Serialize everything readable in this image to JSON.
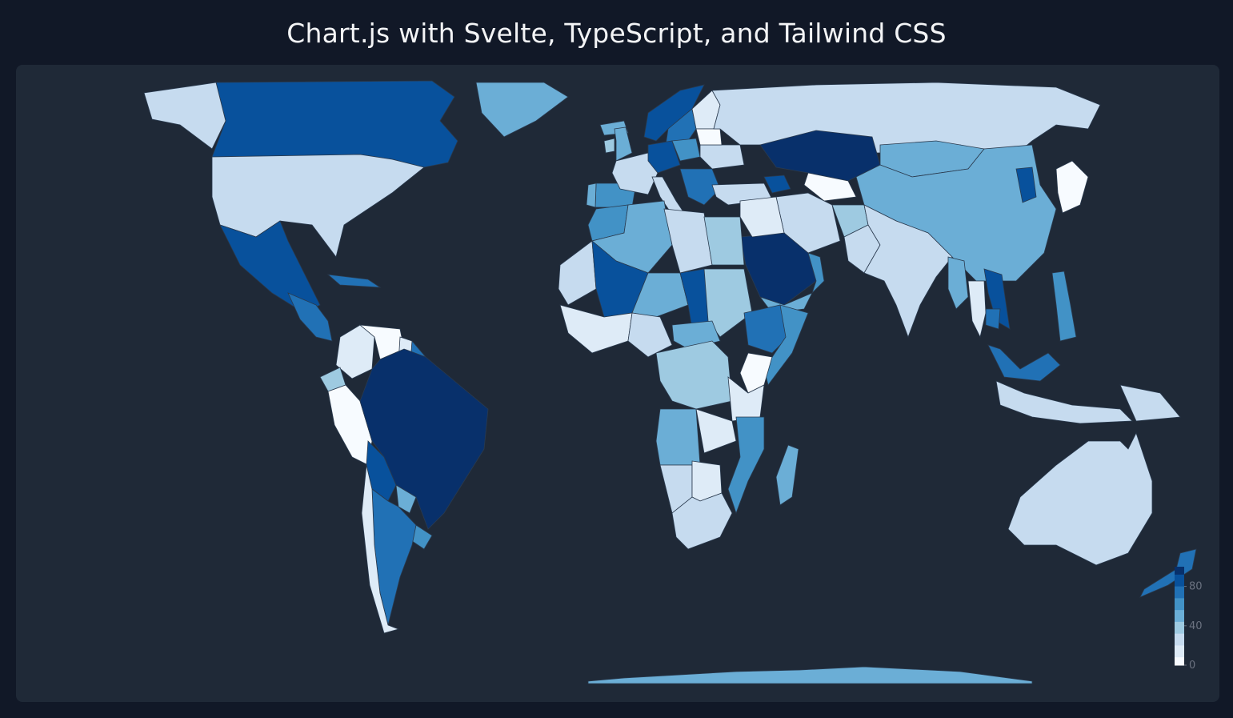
{
  "page": {
    "title": "Chart.js with Svelte, TypeScript, and Tailwind CSS"
  },
  "colors": {
    "background": "#111827",
    "card": "#1f2937",
    "scale": [
      "#f7fbff",
      "#deebf7",
      "#c6dbef",
      "#9ecae1",
      "#6baed6",
      "#4292c6",
      "#2171b5",
      "#08519c",
      "#08306b"
    ]
  },
  "chart_data": {
    "type": "choropleth",
    "projection": "equirectangular",
    "title": "Chart.js with Svelte, TypeScript, and Tailwind CSS",
    "legend": {
      "position": "bottom-right",
      "range": [
        0,
        100
      ],
      "ticks": [
        "0",
        "40",
        "80"
      ]
    },
    "regions": [
      {
        "name": "Canada",
        "value": 88
      },
      {
        "name": "United States",
        "value": 30
      },
      {
        "name": "Alaska",
        "value": 30
      },
      {
        "name": "Greenland",
        "value": 55
      },
      {
        "name": "Mexico",
        "value": 88
      },
      {
        "name": "Central America",
        "value": 70
      },
      {
        "name": "Cuba",
        "value": 72
      },
      {
        "name": "Colombia",
        "value": 15
      },
      {
        "name": "Venezuela",
        "value": 5
      },
      {
        "name": "Guyana",
        "value": 15
      },
      {
        "name": "Suriname",
        "value": 70
      },
      {
        "name": "Ecuador",
        "value": 35
      },
      {
        "name": "Peru",
        "value": 3
      },
      {
        "name": "Brazil",
        "value": 97
      },
      {
        "name": "Bolivia",
        "value": 85
      },
      {
        "name": "Paraguay",
        "value": 45
      },
      {
        "name": "Uruguay",
        "value": 60
      },
      {
        "name": "Argentina",
        "value": 75
      },
      {
        "name": "Chile",
        "value": 12
      },
      {
        "name": "Iceland",
        "value": 55
      },
      {
        "name": "United Kingdom",
        "value": 45
      },
      {
        "name": "Ireland",
        "value": 35
      },
      {
        "name": "Norway",
        "value": 88
      },
      {
        "name": "Sweden",
        "value": 70
      },
      {
        "name": "Finland",
        "value": 15
      },
      {
        "name": "Spain",
        "value": 68
      },
      {
        "name": "Portugal",
        "value": 55
      },
      {
        "name": "France",
        "value": 25
      },
      {
        "name": "Germany",
        "value": 82
      },
      {
        "name": "Poland",
        "value": 60
      },
      {
        "name": "Italy",
        "value": 20
      },
      {
        "name": "Balkans",
        "value": 80
      },
      {
        "name": "Ukraine",
        "value": 25
      },
      {
        "name": "Belarus",
        "value": 5
      },
      {
        "name": "Russia",
        "value": 25
      },
      {
        "name": "Kazakhstan",
        "value": 95
      },
      {
        "name": "Uzbekistan",
        "value": 5
      },
      {
        "name": "Turkey",
        "value": 30
      },
      {
        "name": "Caucasus",
        "value": 85
      },
      {
        "name": "Mongolia",
        "value": 55
      },
      {
        "name": "China",
        "value": 50
      },
      {
        "name": "Korea",
        "value": 90
      },
      {
        "name": "Japan",
        "value": 5
      },
      {
        "name": "Iran",
        "value": 25
      },
      {
        "name": "Afghanistan",
        "value": 35
      },
      {
        "name": "Pakistan",
        "value": 30
      },
      {
        "name": "India",
        "value": 22
      },
      {
        "name": "Myanmar",
        "value": 50
      },
      {
        "name": "Thailand",
        "value": 8
      },
      {
        "name": "Vietnam",
        "value": 92
      },
      {
        "name": "Cambodia",
        "value": 70
      },
      {
        "name": "Malaysia",
        "value": 80
      },
      {
        "name": "Indonesia",
        "value": 30
      },
      {
        "name": "Philippines",
        "value": 65
      },
      {
        "name": "Papua New Guinea",
        "value": 25
      },
      {
        "name": "Australia",
        "value": 30
      },
      {
        "name": "New Zealand",
        "value": 72
      },
      {
        "name": "Saudi Arabia",
        "value": 97
      },
      {
        "name": "Oman",
        "value": 60
      },
      {
        "name": "Yemen",
        "value": 45
      },
      {
        "name": "Syria & Iraq",
        "value": 15
      },
      {
        "name": "Morocco",
        "value": 60
      },
      {
        "name": "Algeria",
        "value": 50
      },
      {
        "name": "Libya",
        "value": 25
      },
      {
        "name": "Egypt",
        "value": 35
      },
      {
        "name": "Mauritania",
        "value": 20
      },
      {
        "name": "Mali",
        "value": 88
      },
      {
        "name": "Niger",
        "value": 55
      },
      {
        "name": "Chad",
        "value": 85
      },
      {
        "name": "Sudan",
        "value": 35
      },
      {
        "name": "Ethiopia",
        "value": 72
      },
      {
        "name": "Somalia",
        "value": 60
      },
      {
        "name": "Kenya",
        "value": 5
      },
      {
        "name": "West Africa Coast",
        "value": 15
      },
      {
        "name": "Nigeria",
        "value": 25
      },
      {
        "name": "Central African Republic",
        "value": 45
      },
      {
        "name": "DR Congo",
        "value": 35
      },
      {
        "name": "Tanzania",
        "value": 10
      },
      {
        "name": "Angola",
        "value": 50
      },
      {
        "name": "Zambia",
        "value": 15
      },
      {
        "name": "Mozambique",
        "value": 60
      },
      {
        "name": "Namibia",
        "value": 22
      },
      {
        "name": "Botswana",
        "value": 12
      },
      {
        "name": "South Africa",
        "value": 30
      },
      {
        "name": "Madagascar",
        "value": 45
      },
      {
        "name": "Antarctica",
        "value": 50
      }
    ]
  }
}
